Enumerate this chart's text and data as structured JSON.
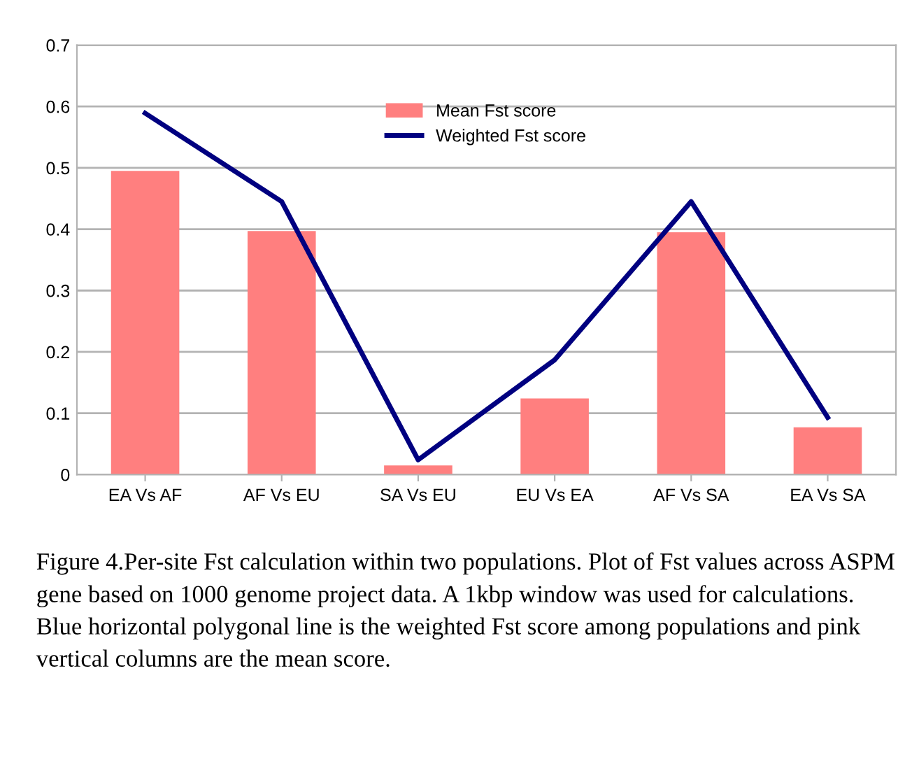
{
  "chart_data": {
    "type": "bar",
    "categories": [
      "EA Vs AF",
      "AF Vs EU",
      "SA Vs EU",
      "EU Vs EA",
      "AF Vs SA",
      "EA Vs SA"
    ],
    "series": [
      {
        "name": "Mean Fst score",
        "color": "#ff7f7f",
        "values": [
          0.495,
          0.397,
          0.015,
          0.124,
          0.395,
          0.077
        ]
      },
      {
        "name": "Weighted Fst score",
        "type": "line",
        "color": "#000080",
        "values": [
          0.589,
          0.445,
          0.024,
          0.187,
          0.445,
          0.093
        ]
      }
    ],
    "ylim": [
      0,
      0.7
    ],
    "yticks": [
      0,
      0.1,
      0.2,
      0.3,
      0.4,
      0.5,
      0.6,
      0.7
    ],
    "grid": "y",
    "legend": "top",
    "marker": "none",
    "line_style": "solid",
    "annotations": [
      "Figure 4.Per-site Fst calculation within two populations. Plot of Fst values across ASPM gene based on 1000 genome project data. A 1kbp window was used for calculations. Blue horizontal polygonal line is the weighted Fst score among populations and pink vertical columns are the mean score."
    ]
  }
}
